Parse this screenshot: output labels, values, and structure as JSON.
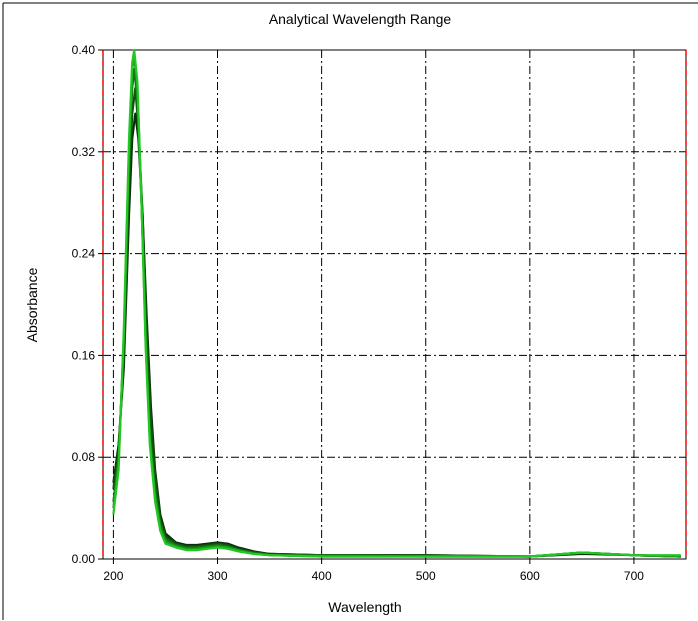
{
  "chart_data": {
    "type": "line",
    "title": "Analytical Wavelength Range",
    "xlabel": "Wavelength",
    "ylabel": "Absorbance",
    "xlim": [
      190,
      750
    ],
    "ylim": [
      0,
      0.4
    ],
    "x_ticks": [
      200,
      300,
      400,
      500,
      600,
      700
    ],
    "y_ticks": [
      0.0,
      0.08,
      0.16,
      0.24,
      0.32,
      0.4
    ],
    "x_tick_labels": [
      "200",
      "300",
      "400",
      "500",
      "600",
      "700"
    ],
    "y_tick_labels": [
      "0.00",
      "0.08",
      "0.16",
      "0.24",
      "0.32",
      "0.40"
    ],
    "grid": true,
    "range_markers": [
      190,
      750
    ],
    "colors": {
      "series_dark": "#0a3a0a",
      "series_mid": "#137a13",
      "series_bright": "#22c822",
      "grid": "#000000",
      "range_marker": "#ff0000"
    },
    "series": [
      {
        "color": "#0b2e0b",
        "points": [
          [
            200,
            0.06
          ],
          [
            205,
            0.09
          ],
          [
            210,
            0.15
          ],
          [
            215,
            0.27
          ],
          [
            218,
            0.33
          ],
          [
            221,
            0.35
          ],
          [
            224,
            0.33
          ],
          [
            228,
            0.27
          ],
          [
            232,
            0.19
          ],
          [
            236,
            0.12
          ],
          [
            240,
            0.07
          ],
          [
            245,
            0.035
          ],
          [
            250,
            0.02
          ],
          [
            260,
            0.013
          ],
          [
            270,
            0.011
          ],
          [
            280,
            0.011
          ],
          [
            290,
            0.012
          ],
          [
            300,
            0.013
          ],
          [
            310,
            0.012
          ],
          [
            320,
            0.009
          ],
          [
            335,
            0.006
          ],
          [
            350,
            0.004
          ],
          [
            400,
            0.003
          ],
          [
            500,
            0.003
          ],
          [
            600,
            0.002
          ],
          [
            650,
            0.004
          ],
          [
            700,
            0.003
          ],
          [
            745,
            0.002
          ]
        ]
      },
      {
        "color": "#0f4f0f",
        "points": [
          [
            200,
            0.055
          ],
          [
            205,
            0.085
          ],
          [
            210,
            0.16
          ],
          [
            215,
            0.29
          ],
          [
            218,
            0.35
          ],
          [
            221,
            0.37
          ],
          [
            224,
            0.34
          ],
          [
            228,
            0.27
          ],
          [
            232,
            0.18
          ],
          [
            236,
            0.11
          ],
          [
            240,
            0.065
          ],
          [
            245,
            0.032
          ],
          [
            250,
            0.018
          ],
          [
            260,
            0.012
          ],
          [
            270,
            0.01
          ],
          [
            280,
            0.01
          ],
          [
            290,
            0.011
          ],
          [
            300,
            0.012
          ],
          [
            310,
            0.011
          ],
          [
            320,
            0.008
          ],
          [
            335,
            0.005
          ],
          [
            350,
            0.004
          ],
          [
            400,
            0.003
          ],
          [
            500,
            0.003
          ],
          [
            600,
            0.002
          ],
          [
            650,
            0.005
          ],
          [
            700,
            0.003
          ],
          [
            745,
            0.002
          ]
        ]
      },
      {
        "color": "#147014",
        "points": [
          [
            200,
            0.045
          ],
          [
            205,
            0.08
          ],
          [
            210,
            0.17
          ],
          [
            215,
            0.31
          ],
          [
            218,
            0.37
          ],
          [
            220,
            0.385
          ],
          [
            223,
            0.36
          ],
          [
            227,
            0.28
          ],
          [
            231,
            0.18
          ],
          [
            235,
            0.1
          ],
          [
            240,
            0.055
          ],
          [
            245,
            0.028
          ],
          [
            250,
            0.016
          ],
          [
            260,
            0.011
          ],
          [
            270,
            0.009
          ],
          [
            280,
            0.009
          ],
          [
            290,
            0.01
          ],
          [
            300,
            0.011
          ],
          [
            310,
            0.01
          ],
          [
            320,
            0.007
          ],
          [
            335,
            0.005
          ],
          [
            350,
            0.003
          ],
          [
            400,
            0.003
          ],
          [
            500,
            0.002
          ],
          [
            600,
            0.002
          ],
          [
            650,
            0.005
          ],
          [
            700,
            0.003
          ],
          [
            745,
            0.002
          ]
        ]
      },
      {
        "color": "#1a9a1a",
        "points": [
          [
            200,
            0.04
          ],
          [
            205,
            0.075
          ],
          [
            210,
            0.175
          ],
          [
            215,
            0.32
          ],
          [
            218,
            0.385
          ],
          [
            220,
            0.395
          ],
          [
            223,
            0.37
          ],
          [
            227,
            0.28
          ],
          [
            231,
            0.17
          ],
          [
            235,
            0.095
          ],
          [
            240,
            0.05
          ],
          [
            245,
            0.025
          ],
          [
            250,
            0.014
          ],
          [
            260,
            0.01
          ],
          [
            270,
            0.008
          ],
          [
            280,
            0.008
          ],
          [
            290,
            0.009
          ],
          [
            300,
            0.01
          ],
          [
            310,
            0.009
          ],
          [
            320,
            0.007
          ],
          [
            335,
            0.004
          ],
          [
            350,
            0.003
          ],
          [
            400,
            0.002
          ],
          [
            500,
            0.002
          ],
          [
            600,
            0.002
          ],
          [
            650,
            0.005
          ],
          [
            700,
            0.003
          ],
          [
            745,
            0.002
          ]
        ]
      },
      {
        "color": "#22c822",
        "points": [
          [
            200,
            0.035
          ],
          [
            205,
            0.07
          ],
          [
            210,
            0.18
          ],
          [
            215,
            0.33
          ],
          [
            218,
            0.39
          ],
          [
            220,
            0.4
          ],
          [
            223,
            0.375
          ],
          [
            227,
            0.28
          ],
          [
            231,
            0.165
          ],
          [
            235,
            0.09
          ],
          [
            240,
            0.045
          ],
          [
            245,
            0.022
          ],
          [
            250,
            0.012
          ],
          [
            260,
            0.009
          ],
          [
            270,
            0.007
          ],
          [
            280,
            0.007
          ],
          [
            290,
            0.008
          ],
          [
            300,
            0.009
          ],
          [
            310,
            0.008
          ],
          [
            320,
            0.006
          ],
          [
            335,
            0.004
          ],
          [
            350,
            0.003
          ],
          [
            400,
            0.002
          ],
          [
            500,
            0.002
          ],
          [
            600,
            0.002
          ],
          [
            650,
            0.005
          ],
          [
            700,
            0.003
          ],
          [
            745,
            0.003
          ]
        ]
      }
    ]
  }
}
